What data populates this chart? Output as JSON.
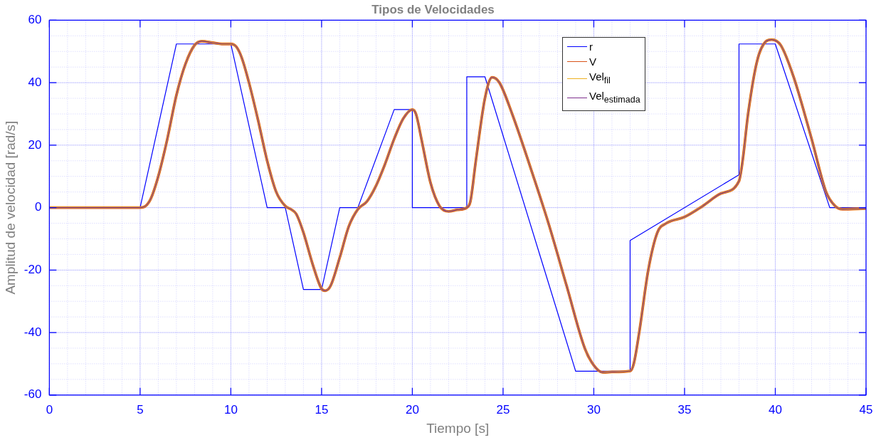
{
  "chart_data": {
    "type": "line",
    "title": "Tipos de Velocidades",
    "xlabel": "Tiempo [s]",
    "ylabel": "Amplitud de velocidad [rad/s]",
    "xlim": [
      0,
      45
    ],
    "xticks": [
      0,
      5,
      10,
      15,
      20,
      25,
      30,
      35,
      40,
      45
    ],
    "ylim": [
      -60,
      60
    ],
    "yticks": [
      -60,
      -40,
      -20,
      0,
      20,
      40,
      60
    ],
    "grid": true,
    "legend": "top",
    "marker": "none",
    "line_style": "solid",
    "series": [
      {
        "name": "r",
        "color": "#0000ff",
        "x": [
          0,
          5,
          7,
          10,
          12,
          13,
          14,
          15,
          16,
          17,
          19,
          20,
          20,
          23,
          23,
          24,
          29,
          32,
          32,
          38,
          38,
          40,
          43,
          45
        ],
        "values": [
          0,
          0,
          52.4,
          52.4,
          0,
          0,
          -26.2,
          -26.2,
          0,
          0,
          31.4,
          31.4,
          0,
          0,
          41.9,
          41.9,
          -52.4,
          -52.4,
          -10.5,
          10.5,
          52.4,
          52.4,
          0,
          0
        ]
      },
      {
        "name": "V",
        "color": "#d95319",
        "x": [
          0,
          5,
          5.3,
          5.6,
          6,
          6.5,
          7,
          7.5,
          8,
          8.4,
          9,
          9.5,
          10,
          10.3,
          10.6,
          11,
          11.5,
          12,
          12.5,
          13,
          13.3,
          13.6,
          14,
          14.5,
          15,
          15.2,
          15.5,
          16,
          16.5,
          17,
          17.5,
          18,
          18.5,
          19,
          19.5,
          20,
          20.2,
          20.5,
          21,
          21.5,
          22,
          22.5,
          23,
          23.2,
          23.5,
          24,
          24.4,
          24.8,
          25.5,
          26.5,
          27.5,
          28.5,
          29.5,
          30,
          30.5,
          31,
          32,
          32.2,
          32.5,
          33,
          33.5,
          34,
          35,
          36,
          37,
          38,
          38.2,
          38.5,
          39,
          39.5,
          39.8,
          40.3,
          41,
          42,
          42.8,
          43.3,
          43.7,
          45
        ],
        "values": [
          0,
          0,
          0.5,
          3,
          10,
          22,
          36,
          46,
          52,
          53.3,
          52.8,
          52.4,
          52.4,
          51.5,
          48,
          40,
          28,
          15,
          5,
          0.5,
          -0.5,
          -2,
          -8,
          -18,
          -26,
          -26.6,
          -25,
          -16,
          -6,
          -0.5,
          2,
          7,
          14,
          22,
          28.5,
          31.4,
          30,
          22,
          8,
          0.5,
          -1.2,
          -0.7,
          0,
          2,
          15,
          35,
          41.7,
          40,
          30,
          13,
          -5,
          -25,
          -45,
          -50.5,
          -52.8,
          -52.6,
          -52.3,
          -50,
          -40,
          -20,
          -8,
          -5,
          -3,
          0.5,
          4.5,
          8.5,
          15,
          30,
          47,
          53.3,
          53.8,
          52,
          42,
          22,
          5,
          0.5,
          -0.5,
          -0.3
        ]
      },
      {
        "name": "Vel$_{fil}$",
        "color": "#edb120",
        "x": [
          0,
          5,
          5.3,
          5.6,
          6,
          6.5,
          7,
          7.5,
          8,
          8.4,
          9,
          9.5,
          10,
          10.3,
          10.6,
          11,
          11.5,
          12,
          12.5,
          13,
          13.3,
          13.6,
          14,
          14.5,
          15,
          15.2,
          15.5,
          16,
          16.5,
          17,
          17.5,
          18,
          18.5,
          19,
          19.5,
          20,
          20.2,
          20.5,
          21,
          21.5,
          22,
          22.5,
          23,
          23.2,
          23.5,
          24,
          24.4,
          24.8,
          25.5,
          26.5,
          27.5,
          28.5,
          29.5,
          30,
          30.5,
          31,
          32,
          32.2,
          32.5,
          33,
          33.5,
          34,
          35,
          36,
          37,
          38,
          38.2,
          38.5,
          39,
          39.5,
          39.8,
          40.3,
          41,
          42,
          42.8,
          43.3,
          43.7,
          45
        ],
        "values": [
          0,
          0,
          0.5,
          3,
          10,
          22,
          36,
          46,
          52,
          53.3,
          52.8,
          52.4,
          52.4,
          51.5,
          48,
          40,
          28,
          15,
          5,
          0.5,
          -0.5,
          -2,
          -8,
          -18,
          -26,
          -26.6,
          -25,
          -16,
          -6,
          -0.5,
          2,
          7,
          14,
          22,
          28.5,
          31.4,
          30,
          22,
          8,
          0.5,
          -1.2,
          -0.7,
          0,
          2,
          15,
          35,
          41.7,
          40,
          30,
          13,
          -5,
          -25,
          -45,
          -50.5,
          -52.8,
          -52.6,
          -52.3,
          -50,
          -40,
          -20,
          -8,
          -5,
          -3,
          0.5,
          4.5,
          8.5,
          15,
          30,
          47,
          53.3,
          53.8,
          52,
          42,
          22,
          5,
          0.5,
          -0.5,
          -0.3
        ]
      },
      {
        "name": "Vel$_{estimada}$",
        "color": "#7e2f8e",
        "x": [
          0,
          5,
          5.3,
          5.6,
          6,
          6.5,
          7,
          7.5,
          8,
          8.4,
          9,
          9.5,
          10,
          10.3,
          10.6,
          11,
          11.5,
          12,
          12.5,
          13,
          13.3,
          13.6,
          14,
          14.5,
          15,
          15.2,
          15.5,
          16,
          16.5,
          17,
          17.5,
          18,
          18.5,
          19,
          19.5,
          20,
          20.2,
          20.5,
          21,
          21.5,
          22,
          22.5,
          23,
          23.2,
          23.5,
          24,
          24.4,
          24.8,
          25.5,
          26.5,
          27.5,
          28.5,
          29.5,
          30,
          30.5,
          31,
          32,
          32.2,
          32.5,
          33,
          33.5,
          34,
          35,
          36,
          37,
          38,
          38.2,
          38.5,
          39,
          39.5,
          39.8,
          40.3,
          41,
          42,
          42.8,
          43.3,
          43.7,
          45
        ],
        "values": [
          0,
          0,
          0.5,
          3,
          10,
          22,
          36,
          46,
          52,
          53.3,
          52.8,
          52.4,
          52.4,
          51.5,
          48,
          40,
          28,
          15,
          5,
          0.5,
          -0.5,
          -2,
          -8,
          -18,
          -26,
          -26.6,
          -25,
          -16,
          -6,
          -0.5,
          2,
          7,
          14,
          22,
          28.5,
          31.4,
          30,
          22,
          8,
          0.5,
          -1.2,
          -0.7,
          0,
          2,
          15,
          35,
          41.7,
          40,
          30,
          13,
          -5,
          -25,
          -45,
          -50.5,
          -52.8,
          -52.6,
          -52.3,
          -50,
          -40,
          -20,
          -8,
          -5,
          -3,
          0.5,
          4.5,
          8.5,
          15,
          30,
          47,
          53.3,
          53.8,
          52,
          42,
          22,
          5,
          0.5,
          -0.5,
          -0.3
        ]
      }
    ]
  }
}
